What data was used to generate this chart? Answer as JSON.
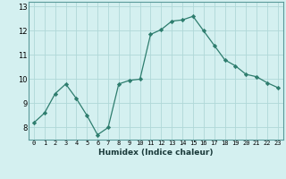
{
  "x": [
    0,
    1,
    2,
    3,
    4,
    5,
    6,
    7,
    8,
    9,
    10,
    11,
    12,
    13,
    14,
    15,
    16,
    17,
    18,
    19,
    20,
    21,
    22,
    23
  ],
  "y": [
    8.2,
    8.6,
    9.4,
    9.8,
    9.2,
    8.5,
    7.7,
    8.0,
    9.8,
    9.95,
    10.0,
    11.85,
    12.05,
    12.4,
    12.45,
    12.6,
    12.0,
    11.4,
    10.8,
    10.55,
    10.2,
    10.1,
    9.85,
    9.65
  ],
  "line_color": "#2e7d6e",
  "marker": "D",
  "marker_size": 2.2,
  "bg_color": "#d4f0f0",
  "grid_color": "#b0d8d8",
  "xlabel": "Humidex (Indice chaleur)",
  "ylim": [
    7.5,
    13.2
  ],
  "xlim": [
    -0.5,
    23.5
  ],
  "yticks": [
    8,
    9,
    10,
    11,
    12,
    13
  ],
  "xticks": [
    0,
    1,
    2,
    3,
    4,
    5,
    6,
    7,
    8,
    9,
    10,
    11,
    12,
    13,
    14,
    15,
    16,
    17,
    18,
    19,
    20,
    21,
    22,
    23
  ],
  "xlabel_fontsize": 6.5,
  "xtick_fontsize": 5.0,
  "ytick_fontsize": 6.0,
  "linewidth": 0.9
}
